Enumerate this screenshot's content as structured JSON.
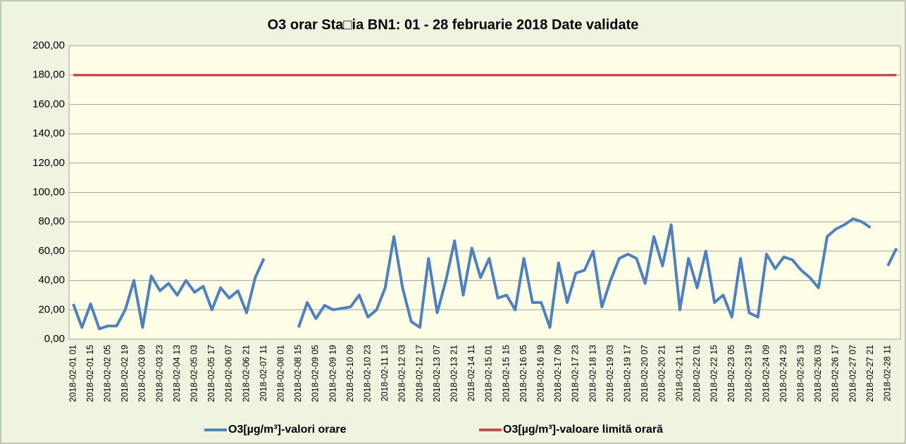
{
  "chart_data": {
    "type": "line",
    "title": "O3 orar Sta□ia BN1: 01 - 28 februarie 2018 Date validate",
    "categories": [
      "2018-02-01 01",
      null,
      "2018-02-01 15",
      null,
      "2018-02-02 05",
      null,
      "2018-02-02 19",
      null,
      "2018-02-03 09",
      null,
      "2018-02-03 23",
      null,
      "2018-02-04 13",
      null,
      "2018-02-05 03",
      null,
      "2018-02-05 17",
      null,
      "2018-02-06 07",
      null,
      "2018-02-06 21",
      null,
      "2018-02-07 11",
      null,
      "2018-02-08 01",
      null,
      "2018-02-08 15",
      null,
      "2018-02-09 05",
      null,
      "2018-02-09 19",
      null,
      "2018-02-10 09",
      null,
      "2018-02-10 23",
      null,
      "2018-02-11 13",
      null,
      "2018-02-12 03",
      null,
      "2018-02-12 17",
      null,
      "2018-02-13 07",
      null,
      "2018-02-13 21",
      null,
      "2018-02-14 11",
      null,
      "2018-02-15 01",
      null,
      "2018-02-15 15",
      null,
      "2018-02-16 05",
      null,
      "2018-02-16 19",
      null,
      "2018-02-17 09",
      null,
      "2018-02-17 23",
      null,
      "2018-02-18 13",
      null,
      "2018-02-19 03",
      null,
      "2018-02-19 17",
      null,
      "2018-02-20 07",
      null,
      "2018-02-20 21",
      null,
      "2018-02-21 11",
      null,
      "2018-02-22 01",
      null,
      "2018-02-22 15",
      null,
      "2018-02-23 05",
      null,
      "2018-02-23 19",
      null,
      "2018-02-24 09",
      null,
      "2018-02-24 23",
      null,
      "2018-02-25 13",
      null,
      "2018-02-26 03",
      null,
      "2018-02-26 17",
      null,
      "2018-02-27 07",
      null,
      "2018-02-27 21",
      null,
      "2018-02-28 11",
      null
    ],
    "series": [
      {
        "name": "O3[µg/m³]-valori orare",
        "color": "#4f81bd",
        "values": [
          24,
          8,
          24,
          7,
          9,
          9,
          20,
          40,
          8,
          43,
          33,
          38,
          30,
          40,
          32,
          36,
          20,
          35,
          28,
          33,
          18,
          42,
          55,
          null,
          null,
          null,
          8,
          25,
          14,
          23,
          20,
          21,
          22,
          30,
          15,
          20,
          35,
          70,
          35,
          12,
          8,
          55,
          18,
          40,
          67,
          30,
          62,
          42,
          55,
          28,
          30,
          20,
          55,
          25,
          25,
          8,
          52,
          25,
          45,
          47,
          60,
          22,
          40,
          55,
          58,
          55,
          38,
          70,
          50,
          78,
          20,
          55,
          35,
          60,
          25,
          30,
          15,
          55,
          18,
          15,
          58,
          48,
          56,
          54,
          47,
          42,
          35,
          70,
          75,
          78,
          82,
          80,
          76,
          null,
          50,
          62
        ]
      },
      {
        "name": "O3[µg/m³]-valoare limită orară",
        "color": "#c0504d",
        "values": [
          180,
          180,
          180,
          180,
          180,
          180,
          180,
          180,
          180,
          180,
          180,
          180,
          180,
          180,
          180,
          180,
          180,
          180,
          180,
          180,
          180,
          180,
          180,
          180,
          180,
          180,
          180,
          180,
          180,
          180,
          180,
          180,
          180,
          180,
          180,
          180,
          180,
          180,
          180,
          180,
          180,
          180,
          180,
          180,
          180,
          180,
          180,
          180,
          180,
          180,
          180,
          180,
          180,
          180,
          180,
          180,
          180,
          180,
          180,
          180,
          180,
          180,
          180,
          180,
          180,
          180,
          180,
          180,
          180,
          180,
          180,
          180,
          180,
          180,
          180,
          180,
          180,
          180,
          180,
          180,
          180,
          180,
          180,
          180,
          180,
          180,
          180,
          180,
          180,
          180,
          180,
          180,
          180,
          180,
          180,
          180
        ]
      }
    ],
    "ylim": [
      0,
      200
    ],
    "yticks": [
      {
        "value": 0,
        "label": "0,00"
      },
      {
        "value": 20,
        "label": "20,00"
      },
      {
        "value": 40,
        "label": "40,00"
      },
      {
        "value": 60,
        "label": "60,00"
      },
      {
        "value": 80,
        "label": "80,00"
      },
      {
        "value": 100,
        "label": "100,00"
      },
      {
        "value": 120,
        "label": "120,00"
      },
      {
        "value": 140,
        "label": "140,00"
      },
      {
        "value": 160,
        "label": "160,00"
      },
      {
        "value": 180,
        "label": "180,00"
      },
      {
        "value": 200,
        "label": "200,00"
      }
    ],
    "grid": true,
    "legend": "bottom"
  }
}
